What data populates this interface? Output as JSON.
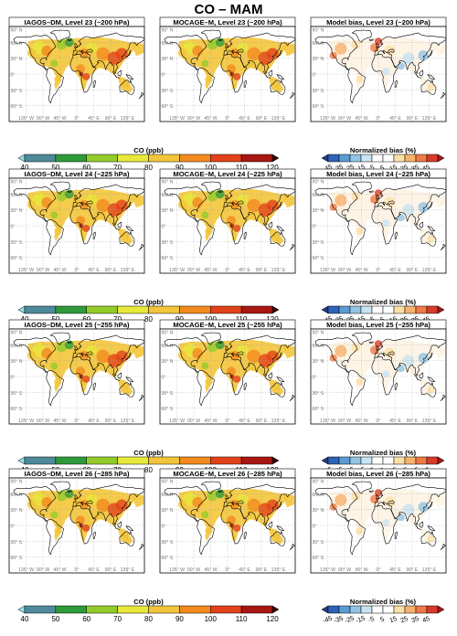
{
  "figure": {
    "title": "CO – MAM",
    "rows": [
      {
        "panels": [
          {
            "title": "IAGOS–DM, Level 23 (~200 hPa)",
            "kind": "co"
          },
          {
            "title": "MOCAGE–M, Level 23 (~200 hPa)",
            "kind": "co"
          },
          {
            "title": "Model bias, Level 23 (~200 hPa)",
            "kind": "bias"
          }
        ]
      },
      {
        "panels": [
          {
            "title": "IAGOS–DM, Level 24 (~225 hPa)",
            "kind": "co"
          },
          {
            "title": "MOCAGE–M, Level 24 (~225 hPa)",
            "kind": "co"
          },
          {
            "title": "Model bias, Level 24 (~225 hPa)",
            "kind": "bias"
          }
        ]
      },
      {
        "panels": [
          {
            "title": "IAGOS–DM, Level 25 (~255 hPa)",
            "kind": "co"
          },
          {
            "title": "MOCAGE–M, Level 25 (~255 hPa)",
            "kind": "co"
          },
          {
            "title": "Model bias, Level 25 (~255 hPa)",
            "kind": "bias"
          }
        ]
      },
      {
        "panels": [
          {
            "title": "IAGOS–DM, Level 26 (~285 hPa)",
            "kind": "co"
          },
          {
            "title": "MOCAGE–M, Level 26 (~285 hPa)",
            "kind": "co"
          },
          {
            "title": "Model bias, Level 26 (~285 hPa)",
            "kind": "bias"
          }
        ]
      }
    ],
    "lat_labels": [
      "90° N",
      "60° N",
      "30° N",
      "0°",
      "30° S",
      "60° S"
    ],
    "lon_labels": [
      "135° W",
      "90° W",
      "45° W",
      "0°",
      "45° E",
      "90° E",
      "135° E"
    ],
    "co_colorbar": {
      "label": "CO (ppb)",
      "ticks": [
        "40",
        "50",
        "60",
        "70",
        "80",
        "90",
        "100",
        "110",
        "120"
      ],
      "colors": [
        "#8fe3ee",
        "#4f8a9a",
        "#2e9a3a",
        "#93cc2a",
        "#e8e83a",
        "#f3c53a",
        "#f28a1e",
        "#e2421a",
        "#a81712",
        "#3a0806"
      ]
    },
    "bias_colorbar": {
      "label": "Normalized bias (%)",
      "ticks": [
        "-45",
        "-35",
        "-25",
        "-15",
        "-5",
        "5",
        "15",
        "25",
        "35",
        "45"
      ],
      "colors": [
        "#203a84",
        "#2f63b5",
        "#5a9bd2",
        "#93c4e3",
        "#c9e4f2",
        "#ffffff",
        "#ffffff",
        "#fbe0a6",
        "#f7b26b",
        "#ef7a45",
        "#d93b2a",
        "#a3161a"
      ]
    }
  }
}
